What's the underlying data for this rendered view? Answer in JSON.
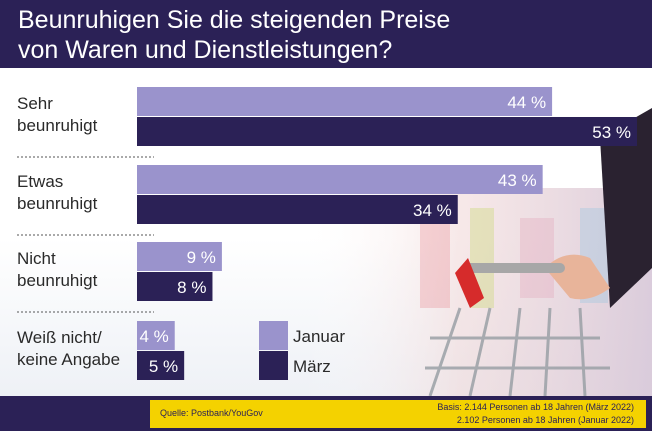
{
  "title": {
    "line1": "Beunruhigen Sie die steigenden Preise",
    "line2": "von Waren und Dienstleistungen?"
  },
  "colors": {
    "januar": "#9a93cc",
    "maerz": "#2b2156",
    "header": "#2b2156",
    "footer_panel": "#f4d200"
  },
  "chart_data": {
    "type": "bar",
    "orientation": "horizontal",
    "categories": [
      [
        "Sehr",
        "beunruhigt"
      ],
      [
        "Etwas",
        "beunruhigt"
      ],
      [
        "Nicht",
        "beunruhigt"
      ],
      [
        "Weiß nicht/",
        "keine Angabe"
      ]
    ],
    "series": [
      {
        "name": "Januar",
        "values": [
          44,
          43,
          9,
          4
        ],
        "labels": [
          "44 %",
          "43 %",
          "9 %",
          "4 %"
        ]
      },
      {
        "name": "März",
        "values": [
          53,
          34,
          8,
          5
        ],
        "labels": [
          "53 %",
          "34 %",
          "8 %",
          "5 %"
        ]
      }
    ],
    "unit": "%",
    "xlim": [
      0,
      53
    ],
    "legend_position": "bottom-center",
    "grid": false
  },
  "footer": {
    "source": "Quelle: Postbank/YouGov",
    "basis_1": "Basis: 2.144 Personen ab 18 Jahren (März 2022)",
    "basis_2": "2.102 Personen ab 18 Jahren (Januar 2022)"
  }
}
